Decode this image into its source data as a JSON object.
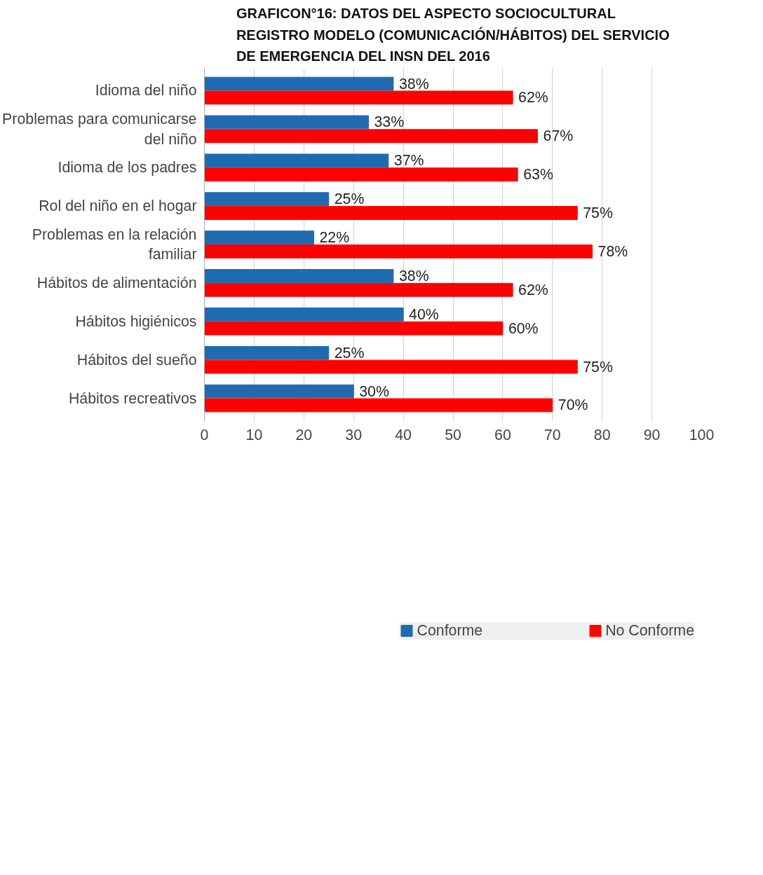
{
  "chart_data": {
    "type": "bar",
    "orientation": "horizontal",
    "title": "GRAFICON°16: DATOS DEL ASPECTO SOCIOCULTURAL REGISTRO MODELO (COMUNICACIÓN/HÁBITOS) DEL SERVICIO DE EMERGENCIA DEL INSN DEL 2016",
    "categories": [
      "Idioma del niño",
      "Problemas para comunicarse del niño",
      "Idioma de los padres",
      "Rol del niño en el hogar",
      "Problemas en la relación familiar",
      "Hábitos de alimentación",
      "Hábitos higiénicos",
      "Hábitos del sueño",
      "Hábitos recreativos"
    ],
    "series": [
      {
        "name": "Conforme",
        "color": "#1f6bb0",
        "values": [
          38,
          33,
          37,
          25,
          22,
          38,
          40,
          25,
          30
        ],
        "value_labels": [
          "38%",
          "33%",
          "37%",
          "25%",
          "22%",
          "38%",
          "40%",
          "25%",
          "30%"
        ]
      },
      {
        "name": "No Conforme",
        "color": "#ff0000",
        "values": [
          62,
          67,
          63,
          75,
          78,
          62,
          60,
          75,
          70
        ],
        "value_labels": [
          "62%",
          "67%",
          "63%",
          "75%",
          "78%",
          "62%",
          "60%",
          "75%",
          "70%"
        ]
      }
    ],
    "xlim": [
      0,
      100
    ],
    "xticks": [
      0,
      10,
      20,
      30,
      40,
      50,
      60,
      70,
      80,
      90,
      100
    ],
    "grid": "x",
    "legend": "bottom"
  }
}
